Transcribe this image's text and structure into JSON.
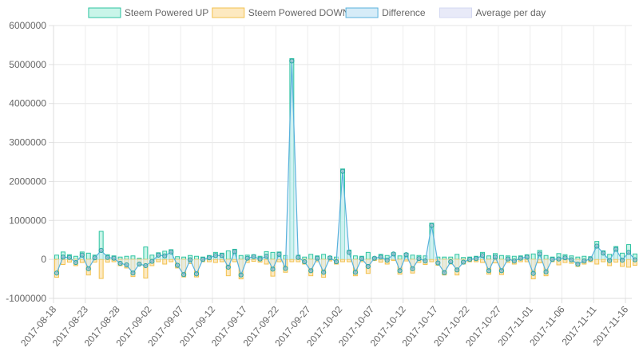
{
  "chart_data": {
    "type": "bar",
    "title": "",
    "xlabel": "",
    "ylabel": "",
    "ylim": [
      -1000000,
      6000000
    ],
    "y_ticks": [
      -1000000,
      0,
      1000000,
      2000000,
      3000000,
      4000000,
      5000000,
      6000000
    ],
    "x_range": [
      "2017-08-18",
      "2017-11-17"
    ],
    "x_tick_labels": [
      "2017-08-18",
      "2017-08-23",
      "2017-08-28",
      "2017-09-02",
      "2017-09-07",
      "2017-09-12",
      "2017-09-17",
      "2017-09-22",
      "2017-09-27",
      "2017-10-02",
      "2017-10-07",
      "2017-10-12",
      "2017-10-17",
      "2017-10-22",
      "2017-10-27",
      "2017-11-01",
      "2017-11-06",
      "2017-11-11",
      "2017-11-16"
    ],
    "grid": true,
    "legend_position": "top",
    "colors": {
      "up_fill": "#c9f5e9",
      "up_stroke": "#2ec4a1",
      "down_fill": "#fde9c0",
      "down_stroke": "#f2c14e",
      "diff_fill": "#d6ecf8",
      "diff_stroke": "#58b1dc",
      "avg_fill": "#e8eaf8",
      "avg_stroke": "#d3d8f2",
      "point_fill": "#8fb9c9",
      "point_stroke": "#2aa7a4"
    },
    "series": [
      {
        "name": "Steem Powered UP",
        "type": "bar",
        "values": [
          110000,
          190000,
          120000,
          80000,
          190000,
          160000,
          110000,
          720000,
          120000,
          90000,
          60000,
          80000,
          90000,
          30000,
          320000,
          110000,
          170000,
          210000,
          250000,
          70000,
          60000,
          100000,
          80000,
          60000,
          100000,
          180000,
          160000,
          220000,
          260000,
          100000,
          110000,
          120000,
          80000,
          200000,
          180000,
          190000,
          100000,
          5150000,
          110000,
          60000,
          130000,
          90000,
          130000,
          80000,
          60000,
          2320000,
          240000,
          90000,
          80000,
          180000,
          60000,
          130000,
          100000,
          170000,
          90000,
          160000,
          110000,
          100000,
          90000,
          930000,
          60000,
          60000,
          60000,
          130000,
          50000,
          60000,
          80000,
          180000,
          90000,
          150000,
          100000,
          90000,
          80000,
          90000,
          120000,
          140000,
          230000,
          100000,
          60000,
          150000,
          120000,
          90000,
          60000,
          80000,
          70000,
          460000,
          220000,
          130000,
          330000,
          160000,
          380000,
          140000
        ]
      },
      {
        "name": "Steem Powered DOWN",
        "type": "bar",
        "values": [
          -460000,
          -130000,
          -70000,
          -160000,
          -80000,
          -400000,
          -70000,
          -490000,
          -70000,
          -60000,
          -160000,
          -220000,
          -440000,
          -150000,
          -480000,
          -160000,
          -60000,
          -120000,
          -60000,
          -220000,
          -450000,
          -110000,
          -450000,
          -60000,
          -60000,
          -80000,
          -60000,
          -420000,
          -60000,
          -500000,
          -80000,
          -50000,
          -70000,
          -120000,
          -430000,
          -60000,
          -330000,
          -60000,
          -60000,
          -120000,
          -420000,
          -60000,
          -460000,
          -40000,
          -120000,
          -60000,
          -60000,
          -420000,
          -60000,
          -360000,
          -30000,
          -70000,
          -120000,
          -30000,
          -380000,
          -40000,
          -350000,
          -80000,
          -130000,
          -60000,
          -150000,
          -400000,
          -120000,
          -400000,
          -120000,
          -60000,
          -60000,
          -80000,
          -380000,
          -90000,
          -390000,
          -80000,
          -120000,
          -60000,
          -60000,
          -500000,
          -90000,
          -420000,
          -60000,
          -140000,
          -80000,
          -100000,
          -180000,
          -120000,
          -60000,
          -120000,
          -60000,
          -160000,
          -70000,
          -180000,
          -200000,
          -150000
        ]
      },
      {
        "name": "Difference",
        "type": "area",
        "values": [
          -350000,
          60000,
          50000,
          -80000,
          110000,
          -240000,
          40000,
          230000,
          50000,
          30000,
          -100000,
          -140000,
          -350000,
          -120000,
          -160000,
          -50000,
          110000,
          90000,
          190000,
          -150000,
          -390000,
          -10000,
          -370000,
          0,
          40000,
          100000,
          100000,
          -200000,
          200000,
          -400000,
          30000,
          70000,
          10000,
          80000,
          -250000,
          130000,
          -230000,
          5090000,
          50000,
          -60000,
          -290000,
          30000,
          -330000,
          40000,
          -60000,
          2260000,
          180000,
          -330000,
          20000,
          -180000,
          30000,
          60000,
          -20000,
          140000,
          -290000,
          120000,
          -240000,
          20000,
          -40000,
          870000,
          -90000,
          -340000,
          -60000,
          -270000,
          -70000,
          0,
          20000,
          100000,
          -290000,
          60000,
          -290000,
          10000,
          -40000,
          30000,
          60000,
          -360000,
          140000,
          -320000,
          0,
          10000,
          40000,
          -10000,
          -120000,
          -40000,
          10000,
          340000,
          160000,
          -30000,
          260000,
          -20000,
          180000,
          -10000
        ]
      },
      {
        "name": "Average per day",
        "type": "line",
        "values": []
      }
    ]
  }
}
